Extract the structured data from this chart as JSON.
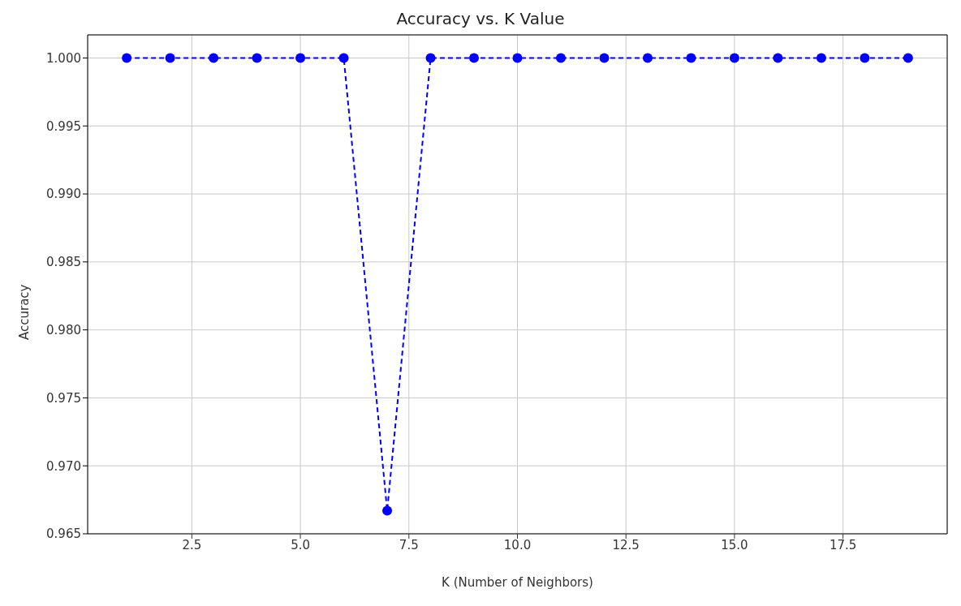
{
  "chart_data": {
    "type": "line",
    "title": "Accuracy vs. K Value",
    "xlabel": "K (Number of Neighbors)",
    "ylabel": "Accuracy",
    "x": [
      1,
      2,
      3,
      4,
      5,
      6,
      7,
      8,
      9,
      10,
      11,
      12,
      13,
      14,
      15,
      16,
      17,
      18,
      19
    ],
    "series": [
      {
        "color": "#0000ff",
        "values": [
          1.0,
          1.0,
          1.0,
          1.0,
          1.0,
          1.0,
          0.9667,
          1.0,
          1.0,
          1.0,
          1.0,
          1.0,
          1.0,
          1.0,
          1.0,
          1.0,
          1.0,
          1.0,
          1.0
        ]
      }
    ],
    "xlim": [
      0.1,
      19.9
    ],
    "xticks": [
      {
        "value": 2.5,
        "label": "2.5"
      },
      {
        "value": 5,
        "label": "5.0"
      },
      {
        "value": 7.5,
        "label": "7.5"
      },
      {
        "value": 10,
        "label": "10.0"
      },
      {
        "value": 12.5,
        "label": "12.5"
      },
      {
        "value": 15,
        "label": "15.0"
      },
      {
        "value": 17.5,
        "label": "17.5"
      }
    ],
    "ylim": [
      0.965,
      1.0017
    ],
    "yticks": [
      {
        "value": 0.965,
        "label": "0.965"
      },
      {
        "value": 0.97,
        "label": "0.970"
      },
      {
        "value": 0.975,
        "label": "0.975"
      },
      {
        "value": 0.98,
        "label": "0.980"
      },
      {
        "value": 0.985,
        "label": "0.985"
      },
      {
        "value": 0.99,
        "label": "0.990"
      },
      {
        "value": 0.995,
        "label": "0.995"
      },
      {
        "value": 1.0,
        "label": "1.000"
      }
    ],
    "grid": true,
    "marker": "circle",
    "line_style": "dashed"
  }
}
